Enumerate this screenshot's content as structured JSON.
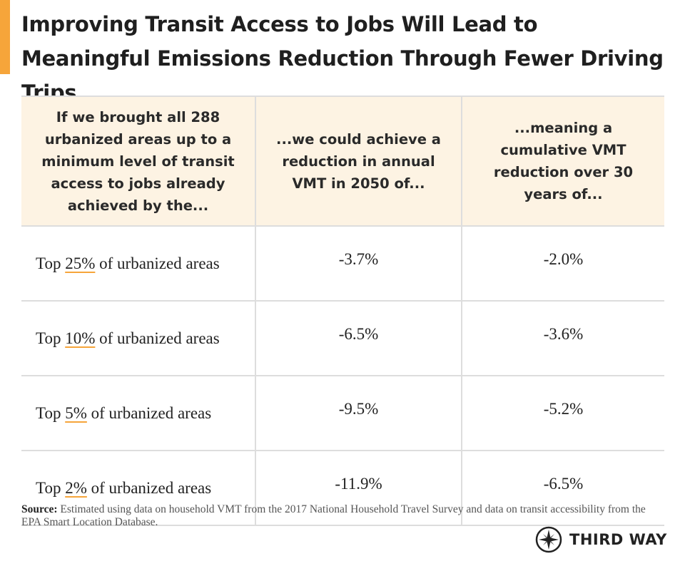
{
  "header": {
    "title": "Improving Transit Access to Jobs Will Lead to Meaningful Emissions Reduction Through Fewer Driving Trips"
  },
  "table": {
    "columns": [
      "If we brought all 288 urbanized areas up to a minimum level of transit access to jobs already achieved by the...",
      "...we could achieve a reduction in annual VMT in 2050 of...",
      "...meaning a cumulative VMT reduction over 30 years of..."
    ],
    "rows": [
      {
        "prefix": "Top",
        "highlight": "25%",
        "suffix": "of urbanized areas",
        "annual": "-3.7%",
        "cumulative": "-2.0%"
      },
      {
        "prefix": "Top",
        "highlight": "10%",
        "suffix": "of urbanized areas",
        "annual": "-6.5%",
        "cumulative": "-3.6%"
      },
      {
        "prefix": "Top",
        "highlight": "5%",
        "suffix": "of urbanized areas",
        "annual": "-9.5%",
        "cumulative": "-5.2%"
      },
      {
        "prefix": "Top",
        "highlight": "2%",
        "suffix": "of urbanized areas",
        "annual": "-11.9%",
        "cumulative": "-6.5%"
      }
    ]
  },
  "footer": {
    "source_label": "Source:",
    "source_text": "Estimated using data on household VMT from the 2017 National Household Travel Survey and data on transit accessibility from the EPA Smart Location Database.",
    "logo": "THIRD WAY"
  }
}
